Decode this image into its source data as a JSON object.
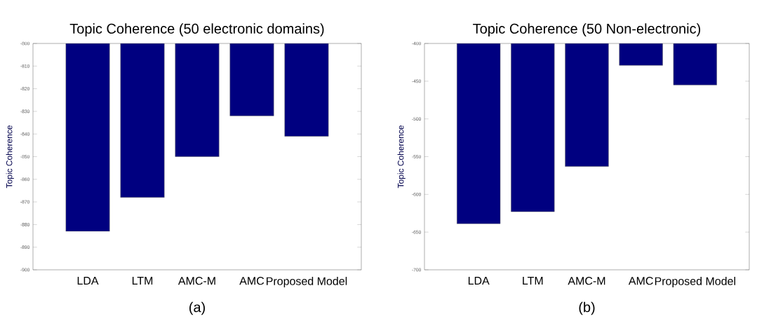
{
  "chart_data": [
    {
      "type": "bar",
      "title": "Topic Coherence (50 electronic domains)",
      "ylabel": "Topic Coherence",
      "categories": [
        "LDA",
        "LTM",
        "AMC-M",
        "AMC",
        "Proposed Model"
      ],
      "values": [
        -883,
        -868,
        -850,
        -832,
        -841
      ],
      "color": "#000080",
      "ylim": [
        -900,
        -800
      ],
      "yticks": [
        -900,
        -890,
        -880,
        -870,
        -860,
        -850,
        -840,
        -830,
        -820,
        -810,
        -800
      ],
      "annotations": [
        "(a)"
      ]
    },
    {
      "type": "bar",
      "title": "Topic Coherence (50 Non-electronic)",
      "ylabel": "Topic Coherence",
      "categories": [
        "LDA",
        "LTM",
        "AMC-M",
        "AMC",
        "Proposed Model"
      ],
      "values": [
        -639,
        -623,
        -563,
        -429,
        -455
      ],
      "color": "#000080",
      "ylim": [
        -700,
        -400
      ],
      "yticks": [
        -700,
        -650,
        -600,
        -550,
        -500,
        -450,
        -400
      ],
      "annotations": [
        "(b)"
      ]
    }
  ]
}
